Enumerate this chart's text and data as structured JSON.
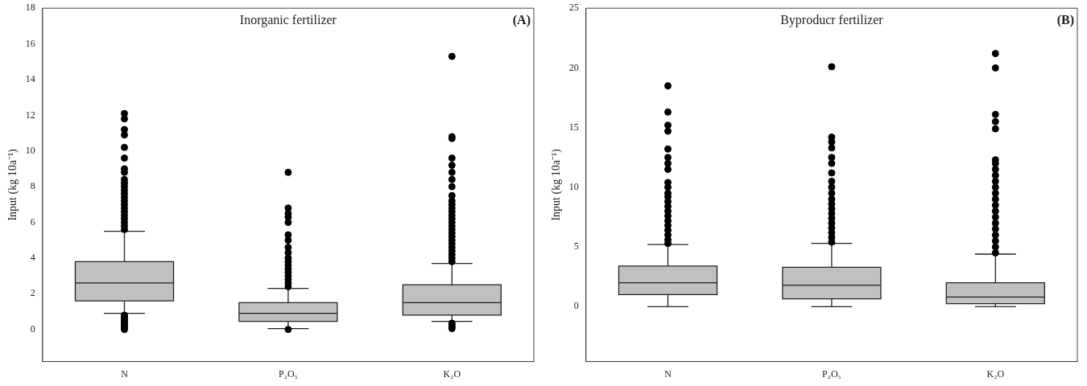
{
  "chart_data": [
    {
      "type": "box",
      "title": "Inorganic fertilizer",
      "ylabel": "Input (kg 10a⁻¹)",
      "annotations": [
        "(A)"
      ],
      "categories": [
        "N",
        "P₂O₅",
        "K₂O"
      ],
      "ylim": [
        -1.8,
        18
      ],
      "yticks": [
        0,
        2,
        4,
        6,
        8,
        10,
        12,
        14,
        16,
        18
      ],
      "series": [
        {
          "color": "#c0c0c0",
          "boxes": [
            {
              "low": 0.9,
              "q1": 1.6,
              "median": 2.6,
              "q3": 3.8,
              "high": 5.5,
              "outliers": [
                0,
                0.1,
                0.2,
                0.3,
                0.4,
                0.5,
                0.6,
                0.7,
                0.8,
                5.6,
                5.8,
                6,
                6.2,
                6.4,
                6.6,
                6.8,
                7,
                7.2,
                7.4,
                7.6,
                7.8,
                8,
                8.2,
                8.4,
                8.8,
                9,
                9.6,
                10.2,
                10.9,
                11.2,
                11.8,
                12.1
              ]
            },
            {
              "low": 0.05,
              "q1": 0.45,
              "median": 0.9,
              "q3": 1.5,
              "high": 2.3,
              "outliers": [
                0,
                2.4,
                2.6,
                2.8,
                3,
                3.2,
                3.4,
                3.6,
                3.8,
                4,
                4.3,
                4.6,
                5,
                5.3,
                6,
                6.3,
                6.5,
                6.8,
                8.8
              ]
            },
            {
              "low": 0.45,
              "q1": 0.8,
              "median": 1.5,
              "q3": 2.5,
              "high": 3.7,
              "outliers": [
                0.05,
                0.15,
                0.25,
                0.35,
                3.8,
                4,
                4.2,
                4.4,
                4.6,
                4.8,
                5,
                5.2,
                5.4,
                5.6,
                5.8,
                6,
                6.2,
                6.4,
                6.6,
                6.8,
                7,
                7.2,
                7.5,
                8,
                8.4,
                8.8,
                9.2,
                9.6,
                10.7,
                10.8,
                15.3
              ]
            }
          ]
        }
      ]
    },
    {
      "type": "box",
      "title": "Byproducr fertilizer",
      "ylabel": "Input (kg 10a⁻¹)",
      "annotations": [
        "(B)"
      ],
      "categories": [
        "N",
        "P₂O₅",
        "K₂O"
      ],
      "ylim": [
        -4.6,
        25
      ],
      "yticks": [
        0,
        5,
        10,
        15,
        20,
        25
      ],
      "series": [
        {
          "color": "#c0c0c0",
          "boxes": [
            {
              "low": 0,
              "q1": 1,
              "median": 2,
              "q3": 3.4,
              "high": 5.2,
              "outliers": [
                5.3,
                5.6,
                6,
                6.4,
                6.8,
                7.2,
                7.6,
                8,
                8.4,
                8.8,
                9.2,
                9.5,
                10,
                10.4,
                11.5,
                12,
                12.5,
                13.2,
                14.7,
                15.2,
                16.3,
                18.5
              ]
            },
            {
              "low": 0,
              "q1": 0.65,
              "median": 1.8,
              "q3": 3.3,
              "high": 5.3,
              "outliers": [
                5.4,
                5.8,
                6.2,
                6.6,
                7,
                7.4,
                7.8,
                8.2,
                8.6,
                9,
                9.5,
                10,
                10.5,
                11.2,
                12,
                12.5,
                13.3,
                13.8,
                14.2,
                20.1
              ]
            },
            {
              "low": 0,
              "q1": 0.25,
              "median": 0.8,
              "q3": 2,
              "high": 4.4,
              "outliers": [
                4.5,
                5,
                5.5,
                6,
                6.5,
                7,
                7.5,
                8,
                8.5,
                9,
                9.5,
                10,
                10.5,
                11,
                11.5,
                12,
                12.3,
                14.9,
                15.5,
                16.1,
                20,
                21.2
              ]
            }
          ]
        }
      ]
    }
  ]
}
